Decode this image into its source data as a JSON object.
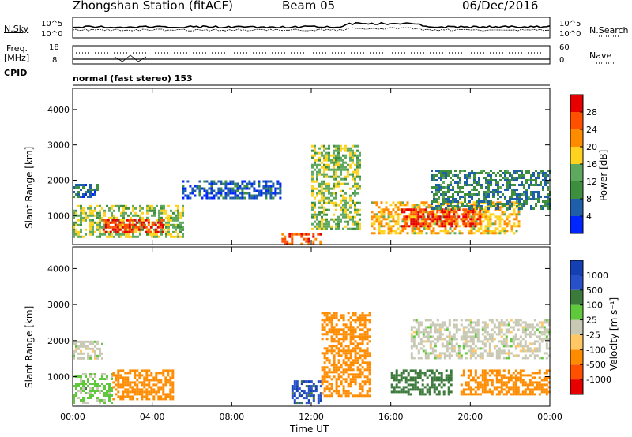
{
  "header": {
    "station": "Zhongshan Station (fitACF)",
    "beam": "Beam 05",
    "date": "06/Dec/2016"
  },
  "noise_panel": {
    "left_label": "N.Sky",
    "left_ticks": [
      "10^5",
      "10^0"
    ],
    "right_ticks": [
      "10^5",
      "10^0"
    ],
    "right_label": "N.Search"
  },
  "freq_panel": {
    "left_label_1": "Freq.",
    "left_label_2": "[MHz]",
    "left_ticks": [
      "18",
      "8"
    ],
    "right_ticks": [
      "60",
      "0"
    ],
    "right_label": "Nave"
  },
  "cpid": {
    "label": "CPID",
    "value": "normal (fast stereo) 153"
  },
  "colors": {
    "power_scale": [
      "#0026ff",
      "#1f5fa8",
      "#3d8f3d",
      "#5fa85f",
      "#ffd21f",
      "#ff8c00",
      "#ff5000",
      "#e60000"
    ],
    "velocity_scale": [
      "#e60000",
      "#ff5000",
      "#ff8c00",
      "#ffc864",
      "#c8c8b4",
      "#5fc83c",
      "#3c7a3c",
      "#2850c8",
      "#1440b4"
    ]
  },
  "chart_data": [
    {
      "type": "heatmap",
      "panel": "power",
      "ylabel": "Slant Range [km]",
      "yticks": [
        "1000",
        "2000",
        "3000",
        "4000"
      ],
      "ylim": [
        180,
        4600
      ],
      "xlim": [
        "00:00",
        "24:00"
      ],
      "colorbar": {
        "label": "Power [dB]",
        "ticks": [
          "4",
          "8",
          "12",
          "16",
          "20",
          "24",
          "28"
        ],
        "range": [
          0,
          30
        ]
      },
      "regions": [
        {
          "t": [
            0.0,
            1.2
          ],
          "r": [
            1500,
            1900
          ],
          "v": 6
        },
        {
          "t": [
            0.0,
            5.5
          ],
          "r": [
            400,
            1300
          ],
          "v": 14
        },
        {
          "t": [
            1.5,
            4.5
          ],
          "r": [
            500,
            900
          ],
          "v": 26
        },
        {
          "t": [
            5.5,
            10.5
          ],
          "r": [
            1500,
            2000
          ],
          "v": 5
        },
        {
          "t": [
            10.5,
            12.5
          ],
          "r": [
            200,
            500
          ],
          "v": 24
        },
        {
          "t": [
            12.0,
            14.5
          ],
          "r": [
            600,
            3000
          ],
          "v": 14
        },
        {
          "t": [
            15.0,
            22.5
          ],
          "r": [
            500,
            1400
          ],
          "v": 18
        },
        {
          "t": [
            16.5,
            20.5
          ],
          "r": [
            700,
            1200
          ],
          "v": 26
        },
        {
          "t": [
            18.0,
            24.0
          ],
          "r": [
            1200,
            2300
          ],
          "v": 8
        }
      ]
    },
    {
      "type": "heatmap",
      "panel": "velocity",
      "ylabel": "Slant Range [km]",
      "yticks": [
        "1000",
        "2000",
        "3000",
        "4000"
      ],
      "ylim": [
        180,
        4600
      ],
      "colorbar": {
        "label": "Velocity [m s⁻¹]",
        "ticks": [
          "1000",
          "500",
          "100",
          "25",
          "-25",
          "-100",
          "-500",
          "-1000"
        ]
      },
      "regions": [
        {
          "t": [
            0.0,
            1.5
          ],
          "r": [
            1500,
            2000
          ],
          "v": 0
        },
        {
          "t": [
            0.0,
            2.0
          ],
          "r": [
            300,
            1100
          ],
          "v": 50
        },
        {
          "t": [
            2.0,
            5.0
          ],
          "r": [
            400,
            1200
          ],
          "v": -300
        },
        {
          "t": [
            11.0,
            12.5
          ],
          "r": [
            300,
            900
          ],
          "v": 800
        },
        {
          "t": [
            12.5,
            15.0
          ],
          "r": [
            500,
            2800
          ],
          "v": -300
        },
        {
          "t": [
            16.0,
            19.0
          ],
          "r": [
            500,
            1200
          ],
          "v": 300
        },
        {
          "t": [
            19.5,
            24.0
          ],
          "r": [
            500,
            1200
          ],
          "v": -300
        },
        {
          "t": [
            17.0,
            24.0
          ],
          "r": [
            1500,
            2600
          ],
          "v": 0
        }
      ]
    }
  ],
  "xaxis": {
    "ticks": [
      "00:00",
      "04:00",
      "08:00",
      "12:00",
      "16:00",
      "20:00",
      "00:00"
    ],
    "label": "Time UT"
  }
}
